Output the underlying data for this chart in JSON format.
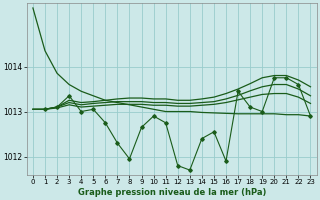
{
  "background_color": "#cce8e8",
  "grid_color": "#99cccc",
  "line_color": "#1a5c1a",
  "xlabel": "Graphe pression niveau de la mer (hPa)",
  "xlim": [
    -0.5,
    23.5
  ],
  "ylim": [
    1011.6,
    1015.4
  ],
  "yticks": [
    1012,
    1013,
    1014
  ],
  "xticks": [
    0,
    1,
    2,
    3,
    4,
    5,
    6,
    7,
    8,
    9,
    10,
    11,
    12,
    13,
    14,
    15,
    16,
    17,
    18,
    19,
    20,
    21,
    22,
    23
  ],
  "series1": [
    1015.3,
    1014.35,
    1013.85,
    1013.6,
    1013.45,
    1013.35,
    1013.25,
    1013.2,
    1013.15,
    1013.1,
    1013.05,
    1013.0,
    1013.0,
    1013.0,
    1012.98,
    1012.97,
    1012.96,
    1012.95,
    1012.95,
    1012.95,
    1012.95,
    1012.93,
    1012.93,
    1012.9
  ],
  "series2_x": [
    1,
    2,
    3,
    4,
    5,
    6,
    7,
    8,
    9,
    10,
    11,
    12,
    13,
    14,
    15,
    16,
    17,
    18,
    19,
    20,
    21,
    22,
    23
  ],
  "series2_y": [
    1013.05,
    1013.1,
    1013.35,
    1013.0,
    1013.05,
    1012.75,
    1012.3,
    1011.95,
    1012.65,
    1012.9,
    1012.75,
    1011.8,
    1011.7,
    1012.4,
    1012.55,
    1011.9,
    1013.45,
    1013.1,
    1013.0,
    1013.75,
    1013.75,
    1013.6,
    1012.9
  ],
  "series3": [
    1013.05,
    1013.05,
    1013.1,
    1013.25,
    1013.2,
    1013.22,
    1013.25,
    1013.28,
    1013.3,
    1013.3,
    1013.28,
    1013.28,
    1013.25,
    1013.25,
    1013.28,
    1013.32,
    1013.4,
    1013.5,
    1013.62,
    1013.75,
    1013.8,
    1013.8,
    1013.7,
    1013.55
  ],
  "series4": [
    1013.05,
    1013.05,
    1013.1,
    1013.2,
    1013.15,
    1013.18,
    1013.2,
    1013.22,
    1013.22,
    1013.22,
    1013.2,
    1013.2,
    1013.18,
    1013.18,
    1013.2,
    1013.22,
    1013.28,
    1013.36,
    1013.46,
    1013.55,
    1013.6,
    1013.6,
    1013.5,
    1013.35
  ],
  "series5": [
    1013.05,
    1013.05,
    1013.08,
    1013.15,
    1013.1,
    1013.12,
    1013.14,
    1013.16,
    1013.16,
    1013.16,
    1013.14,
    1013.14,
    1013.12,
    1013.12,
    1013.14,
    1013.16,
    1013.2,
    1013.26,
    1013.32,
    1013.38,
    1013.4,
    1013.4,
    1013.32,
    1013.18
  ]
}
